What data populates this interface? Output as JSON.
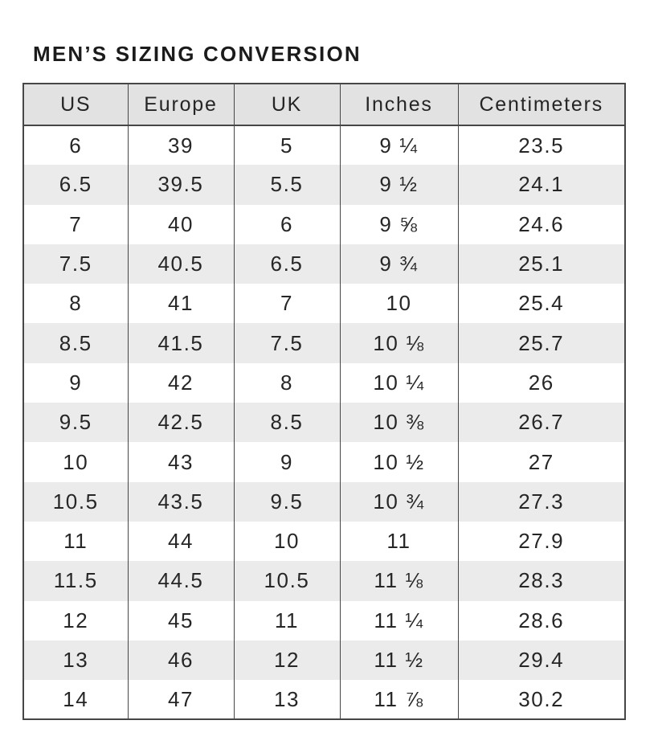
{
  "page": {
    "title": "MEN’S SIZING CONVERSION"
  },
  "table": {
    "columns": [
      "US",
      "Europe",
      "UK",
      "Inches",
      "Centimeters"
    ],
    "rows": [
      [
        "6",
        "39",
        "5",
        "9 ¼",
        "23.5"
      ],
      [
        "6.5",
        "39.5",
        "5.5",
        "9 ½",
        "24.1"
      ],
      [
        "7",
        "40",
        "6",
        "9 ⅝",
        "24.6"
      ],
      [
        "7.5",
        "40.5",
        "6.5",
        "9 ¾",
        "25.1"
      ],
      [
        "8",
        "41",
        "7",
        "10",
        "25.4"
      ],
      [
        "8.5",
        "41.5",
        "7.5",
        "10 ⅛",
        "25.7"
      ],
      [
        "9",
        "42",
        "8",
        "10 ¼",
        "26"
      ],
      [
        "9.5",
        "42.5",
        "8.5",
        "10 ⅜",
        "26.7"
      ],
      [
        "10",
        "43",
        "9",
        "10 ½",
        "27"
      ],
      [
        "10.5",
        "43.5",
        "9.5",
        "10 ¾",
        "27.3"
      ],
      [
        "11",
        "44",
        "10",
        "11",
        "27.9"
      ],
      [
        "11.5",
        "44.5",
        "10.5",
        "11 ⅛",
        "28.3"
      ],
      [
        "12",
        "45",
        "11",
        "11 ¼",
        "28.6"
      ],
      [
        "13",
        "46",
        "12",
        "11 ½",
        "29.4"
      ],
      [
        "14",
        "47",
        "13",
        "11 ⅞",
        "30.2"
      ]
    ],
    "colors": {
      "header_bg": "#e2e2e2",
      "stripe_bg": "#ebebeb",
      "border": "#464646",
      "text": "#262626"
    }
  }
}
